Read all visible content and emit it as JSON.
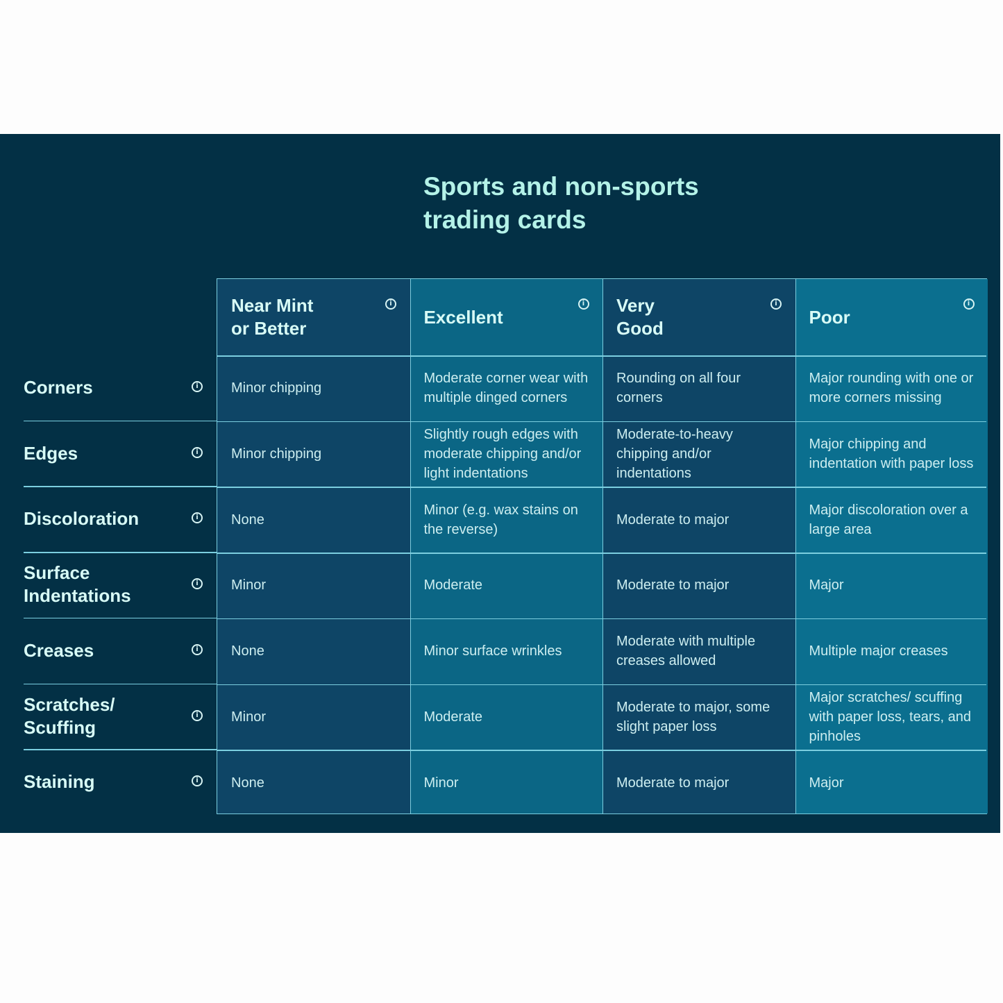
{
  "title": {
    "line1": "Sports and non-sports",
    "line2": "trading cards"
  },
  "columns": [
    {
      "label": "Near Mint or Better"
    },
    {
      "label": "Excellent"
    },
    {
      "label": "Very Good"
    },
    {
      "label": "Poor"
    }
  ],
  "rows": [
    {
      "label": "Corners",
      "cells": [
        "Minor chipping",
        "Moderate corner wear with multiple dinged corners",
        "Rounding on all four corners",
        "Major rounding with one or more corners missing"
      ]
    },
    {
      "label": "Edges",
      "cells": [
        "Minor chipping",
        "Slightly rough edges with moderate chipping and/or light indentations",
        "Moderate-to-heavy chipping and/or indentations",
        "Major chipping and indentation with paper loss"
      ]
    },
    {
      "label": "Discoloration",
      "cells": [
        "None",
        "Minor (e.g. wax stains on the reverse)",
        "Moderate to major",
        "Major discoloration over a large area"
      ]
    },
    {
      "label": "Surface Indentations",
      "cells": [
        "Minor",
        "Moderate",
        "Moderate to major",
        "Major"
      ]
    },
    {
      "label": "Creases",
      "cells": [
        "None",
        "Minor surface wrinkles",
        "Moderate with multiple creases allowed",
        "Multiple major creases"
      ]
    },
    {
      "label": "Scratches/ Scuffing",
      "cells": [
        "Minor",
        "Moderate",
        "Moderate to major, some slight paper loss",
        "Major scratches/ scuffing with paper loss, tears, and pinholes"
      ]
    },
    {
      "label": "Staining",
      "cells": [
        "None",
        "Minor",
        "Moderate to major",
        "Major"
      ]
    }
  ],
  "icons": {
    "info": "info-circle-icon"
  },
  "colors": {
    "background": "#033045",
    "col_dark": "#0e4566",
    "col_light": "#0b6685",
    "grid_line": "#7ccfe0",
    "title": "#b4f2e8"
  }
}
